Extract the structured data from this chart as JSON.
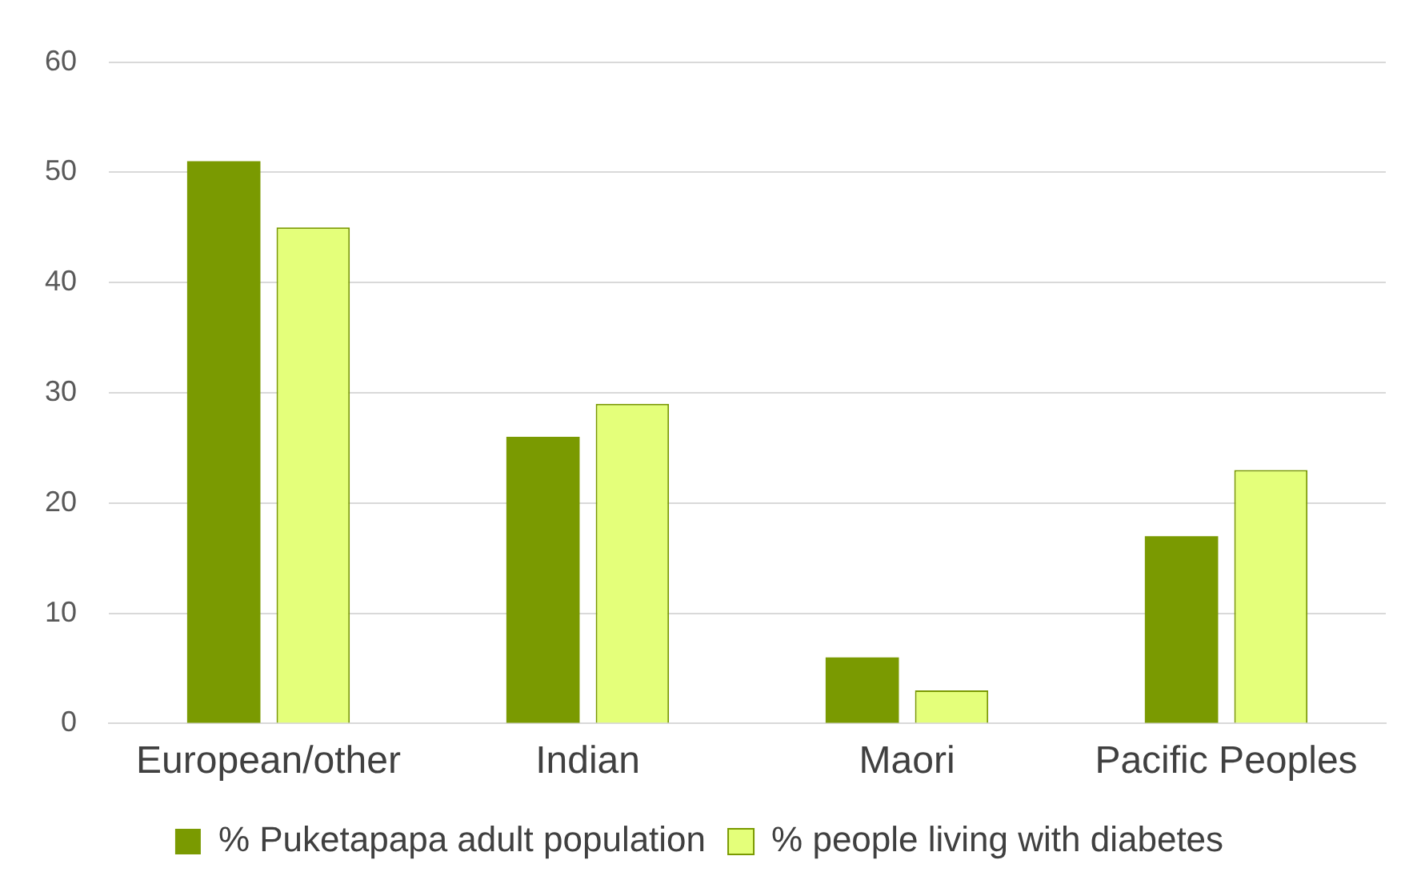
{
  "chart_data": {
    "type": "bar",
    "categories": [
      "European/other",
      "Indian",
      "Maori",
      "Pacific Peoples"
    ],
    "series": [
      {
        "name": "% Puketapapa adult population",
        "color": "#7a9a01",
        "values": [
          51,
          26,
          6,
          17
        ]
      },
      {
        "name": "% people living with diabetes",
        "color": "#e4ff7a",
        "values": [
          45,
          29,
          3,
          23
        ]
      }
    ],
    "ylim": [
      0,
      60
    ],
    "yticks": [
      0,
      10,
      20,
      30,
      40,
      50,
      60
    ],
    "grid": "y",
    "legend": "bottom"
  }
}
